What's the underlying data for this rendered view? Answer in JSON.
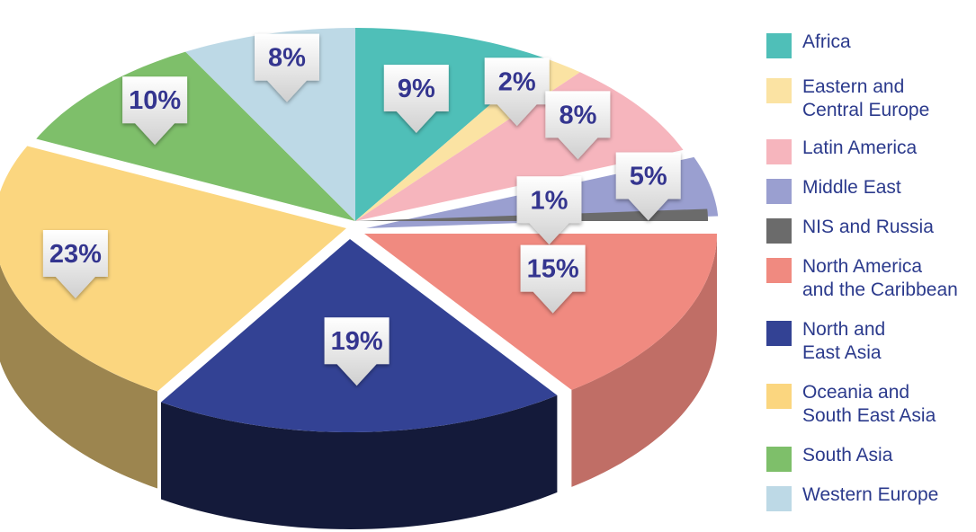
{
  "chart_data": {
    "type": "pie",
    "style": "3d-exploded",
    "title": "",
    "categories": [
      "Africa",
      "Eastern and Central Europe",
      "Latin America",
      "Middle East",
      "NIS and Russia",
      "North America and the Caribbean",
      "North and East Asia",
      "Oceania and South East Asia",
      "South Asia",
      "Western Europe"
    ],
    "values": [
      9,
      2,
      8,
      5,
      1,
      15,
      19,
      23,
      10,
      8
    ],
    "labels": [
      "9%",
      "2%",
      "8%",
      "5%",
      "1%",
      "15%",
      "19%",
      "23%",
      "10%",
      "8%"
    ],
    "colors": [
      "#4fbfb8",
      "#fbe3a3",
      "#f6b5bd",
      "#9a9fd0",
      "#6b6b6b",
      "#f08a80",
      "#334294",
      "#fbd67f",
      "#7ebf6a",
      "#bdd9e6"
    ],
    "legend": "right",
    "legend_labels": [
      "Africa",
      "Eastern and\nCentral Europe",
      "Latin America",
      "Middle East",
      "NIS and Russia",
      "North America\nand the Caribbean",
      "North and\nEast Asia",
      "Oceania and\nSouth East Asia",
      "South Asia",
      "Western Europe"
    ]
  }
}
